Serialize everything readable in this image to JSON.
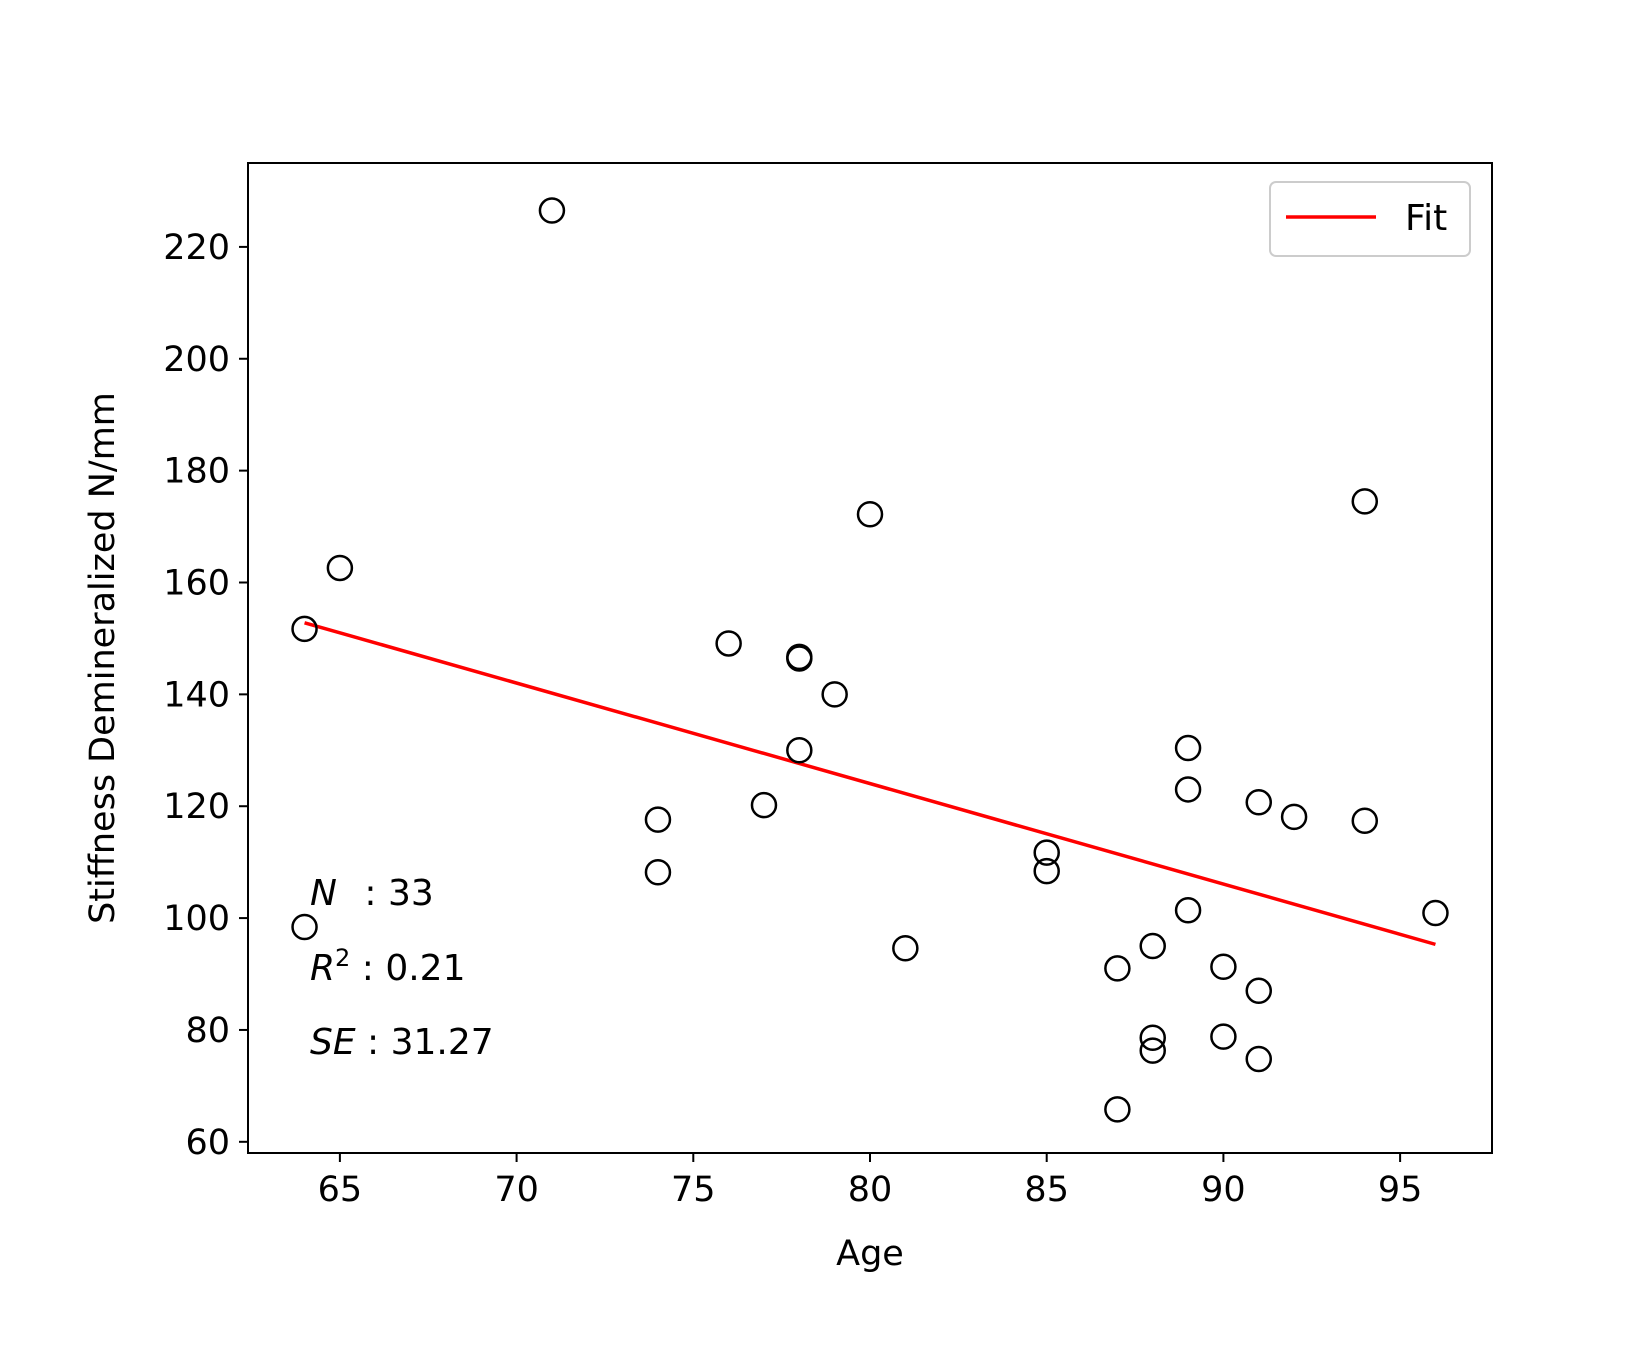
{
  "chart_data": {
    "type": "scatter",
    "xlabel": "Age",
    "ylabel": "Stiffness Demineralized N/mm",
    "xlim": [
      62.4,
      97.6
    ],
    "ylim": [
      58,
      235
    ],
    "xticks": [
      65,
      70,
      75,
      80,
      85,
      90,
      95
    ],
    "yticks": [
      60,
      80,
      100,
      120,
      140,
      160,
      180,
      200,
      220
    ],
    "grid": false,
    "legend_position": "top-right",
    "colors": {
      "fit": "#ff0000",
      "markers": "#000000"
    },
    "series": [
      {
        "type": "scatter",
        "marker": "open-circle",
        "x": [
          64,
          64,
          65,
          71,
          74,
          74,
          76,
          77,
          78,
          78,
          78,
          79,
          80,
          81,
          85,
          85,
          87,
          87,
          88,
          88,
          88,
          89,
          89,
          89,
          90,
          90,
          91,
          91,
          91,
          92,
          94,
          94,
          96
        ],
        "y": [
          151.7,
          98.4,
          162.6,
          226.5,
          117.6,
          108.2,
          149.1,
          120.2,
          146.7,
          146.4,
          130.0,
          140.0,
          172.2,
          94.6,
          111.7,
          108.4,
          91.0,
          65.8,
          95.0,
          78.6,
          76.3,
          130.4,
          123.0,
          101.4,
          91.3,
          78.8,
          120.7,
          87.0,
          74.8,
          118.1,
          174.5,
          117.4,
          100.9
        ]
      },
      {
        "name": "Fit",
        "type": "line",
        "x": [
          64,
          96
        ],
        "y": [
          152.8,
          95.3
        ]
      }
    ],
    "annotations": {
      "n_label": "N",
      "n_value": " : 33",
      "r2_label": "R",
      "r2_sup": "2",
      "r2_value": " : 0.21",
      "se_label": "SE",
      "se_value": " : 31.27"
    }
  }
}
